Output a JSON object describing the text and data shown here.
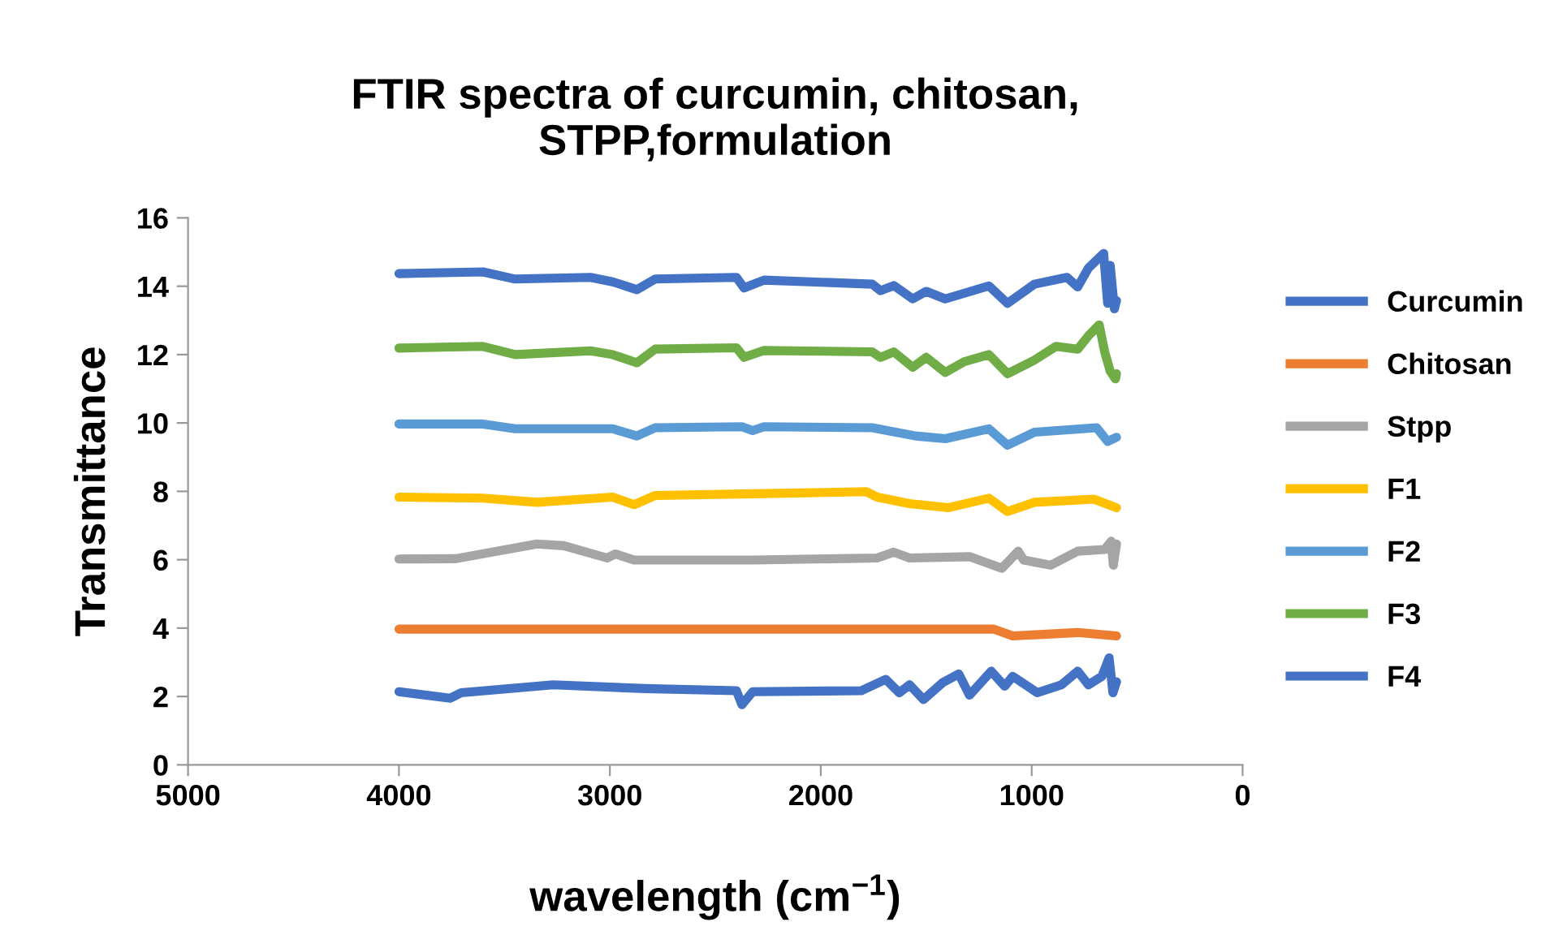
{
  "chart_data": {
    "type": "line",
    "title": "FTIR spectra of curcumin, chitosan,\nSTPP,formulation",
    "xlabel": "wavelength (cm$^{−1}$)",
    "ylabel": "Transmittance",
    "xlim": [
      5000,
      0
    ],
    "xticks": [
      5000,
      4000,
      3000,
      2000,
      1000,
      0
    ],
    "ylim": [
      0,
      16
    ],
    "yticks": [
      0,
      2,
      4,
      6,
      8,
      10,
      12,
      14,
      16
    ],
    "grid": false,
    "legend": "right",
    "marker": "none",
    "line_style": "solid",
    "series": [
      {
        "name": "Curcumin",
        "color": "#4472c4",
        "x": [
          4000,
          3757,
          3705,
          3269,
          2833,
          2400,
          2374,
          2323,
          1808,
          1692,
          1628,
          1579,
          1513,
          1423,
          1346,
          1295,
          1192,
          1128,
          1090,
          974,
          859,
          782,
          731,
          667,
          633,
          615,
          598
        ],
        "values": [
          2.14,
          1.95,
          2.11,
          2.34,
          2.23,
          2.17,
          1.76,
          2.14,
          2.17,
          2.5,
          2.11,
          2.34,
          1.91,
          2.4,
          2.66,
          2.04,
          2.74,
          2.3,
          2.59,
          2.11,
          2.34,
          2.74,
          2.34,
          2.59,
          3.13,
          2.11,
          2.43
        ]
      },
      {
        "name": "Chitosan",
        "color": "#ed7d31",
        "x": [
          4000,
          1808,
          1180,
          1090,
          782,
          598
        ],
        "values": [
          3.97,
          3.97,
          3.97,
          3.77,
          3.87,
          3.77
        ]
      },
      {
        "name": "Stpp",
        "color": "#a5a5a5",
        "x": [
          4000,
          3731,
          3346,
          3218,
          3013,
          2974,
          2885,
          2323,
          1733,
          1654,
          1579,
          1295,
          1141,
          1064,
          1038,
          910,
          782,
          654,
          623,
          613,
          598
        ],
        "values": [
          6.02,
          6.03,
          6.46,
          6.41,
          6.05,
          6.17,
          5.99,
          5.99,
          6.05,
          6.22,
          6.05,
          6.09,
          5.75,
          6.25,
          5.99,
          5.84,
          6.25,
          6.3,
          6.54,
          5.84,
          6.46
        ]
      },
      {
        "name": "F1",
        "color": "#ffc000",
        "x": [
          4000,
          3602,
          3346,
          2987,
          2885,
          2785,
          2323,
          1784,
          1733,
          1579,
          1397,
          1203,
          1115,
          987,
          705,
          598
        ],
        "values": [
          7.83,
          7.8,
          7.68,
          7.83,
          7.61,
          7.88,
          7.93,
          7.99,
          7.83,
          7.64,
          7.52,
          7.8,
          7.41,
          7.68,
          7.77,
          7.52
        ]
      },
      {
        "name": "F2",
        "color": "#5b9bd5",
        "x": [
          4000,
          3602,
          3449,
          2987,
          2872,
          2785,
          2374,
          2323,
          2269,
          1756,
          1551,
          1410,
          1203,
          1115,
          987,
          692,
          640,
          598
        ],
        "values": [
          9.97,
          9.97,
          9.83,
          9.83,
          9.62,
          9.86,
          9.89,
          9.78,
          9.89,
          9.86,
          9.62,
          9.54,
          9.83,
          9.35,
          9.73,
          9.86,
          9.46,
          9.58
        ]
      },
      {
        "name": "F3",
        "color": "#70ad47",
        "x": [
          4000,
          3602,
          3449,
          3092,
          2987,
          2872,
          2785,
          2400,
          2364,
          2269,
          1756,
          1717,
          1654,
          1564,
          1500,
          1410,
          1321,
          1203,
          1115,
          987,
          885,
          782,
          731,
          680,
          654,
          628,
          603,
          598
        ],
        "values": [
          12.19,
          12.24,
          12.0,
          12.11,
          12.0,
          11.76,
          12.16,
          12.2,
          11.92,
          12.12,
          12.08,
          11.92,
          12.08,
          11.63,
          11.92,
          11.48,
          11.79,
          12.0,
          11.44,
          11.84,
          12.24,
          12.16,
          12.55,
          12.87,
          12.08,
          11.52,
          11.29,
          11.44
        ]
      },
      {
        "name": "F4",
        "color": "#4472c4",
        "x": [
          4000,
          3602,
          3449,
          3092,
          2987,
          2872,
          2785,
          2400,
          2364,
          2269,
          1756,
          1717,
          1654,
          1564,
          1500,
          1410,
          1203,
          1115,
          987,
          833,
          782,
          731,
          659,
          640,
          628,
          608,
          598
        ],
        "values": [
          14.37,
          14.42,
          14.21,
          14.26,
          14.13,
          13.9,
          14.21,
          14.26,
          13.95,
          14.18,
          14.06,
          13.87,
          14.02,
          13.63,
          13.85,
          13.63,
          14.01,
          13.5,
          14.06,
          14.26,
          13.98,
          14.53,
          14.96,
          13.5,
          14.61,
          13.34,
          13.58
        ]
      }
    ]
  }
}
